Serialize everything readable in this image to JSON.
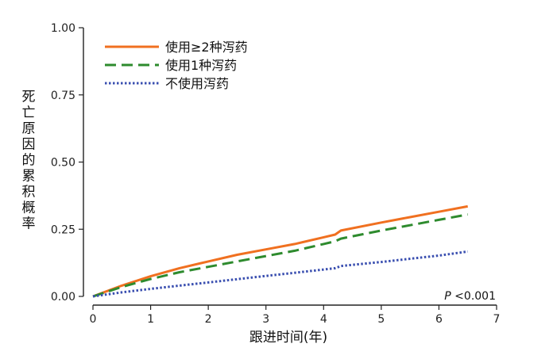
{
  "chart_data": {
    "type": "line",
    "title": "",
    "xlabel": "跟进时间(年)",
    "ylabel": "死亡原因的累积概率",
    "xlim": [
      0,
      7
    ],
    "ylim": [
      0,
      1
    ],
    "x_ticks": [
      0,
      1,
      2,
      3,
      4,
      5,
      6,
      7
    ],
    "y_ticks": [
      0,
      0.25,
      0.5,
      0.75,
      1
    ],
    "x_tick_labels": [
      "0",
      "1",
      "2",
      "3",
      "4",
      "5",
      "6",
      "7"
    ],
    "y_tick_labels": [
      "0.00",
      "0.25",
      "0.50",
      "0.75",
      "1.00"
    ],
    "grid": false,
    "legend_position": "top-left",
    "annotation": {
      "italic": "P",
      "text": " <0.001"
    },
    "series": [
      {
        "name": "使用≥2种泻药",
        "color": "#f07020",
        "dash": "solid",
        "x": [
          0,
          0.5,
          1,
          1.5,
          2,
          2.5,
          3,
          3.5,
          4,
          4.2,
          4.3,
          5,
          5.5,
          6,
          6.5
        ],
        "y": [
          0,
          0.04,
          0.075,
          0.105,
          0.13,
          0.155,
          0.175,
          0.195,
          0.22,
          0.23,
          0.245,
          0.275,
          0.295,
          0.315,
          0.335
        ]
      },
      {
        "name": "使用1种泻药",
        "color": "#2e8b2e",
        "dash": "long-dash",
        "x": [
          0,
          0.5,
          1,
          1.5,
          2,
          2.5,
          3,
          3.5,
          4,
          4.2,
          4.3,
          5,
          5.5,
          6,
          6.5
        ],
        "y": [
          0,
          0.035,
          0.065,
          0.09,
          0.11,
          0.13,
          0.15,
          0.17,
          0.195,
          0.205,
          0.215,
          0.245,
          0.265,
          0.285,
          0.305
        ]
      },
      {
        "name": "不使用泻药",
        "color": "#3a4fb0",
        "dash": "dotted",
        "x": [
          0,
          0.5,
          1,
          1.5,
          2,
          2.5,
          3,
          3.5,
          4,
          4.2,
          4.3,
          5,
          5.5,
          6,
          6.5
        ],
        "y": [
          0,
          0.015,
          0.028,
          0.04,
          0.052,
          0.064,
          0.076,
          0.088,
          0.1,
          0.105,
          0.113,
          0.128,
          0.14,
          0.152,
          0.167
        ]
      }
    ]
  }
}
